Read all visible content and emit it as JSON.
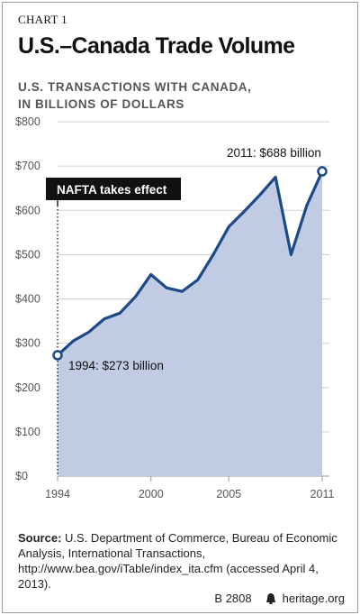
{
  "header": {
    "chart_label": "CHART 1",
    "title": "U.S.–Canada Trade Volume",
    "subtitle_line1": "U.S. TRANSACTIONS WITH CANADA,",
    "subtitle_line2": "IN BILLIONS OF DOLLARS"
  },
  "annotations": {
    "event_label": "NAFTA takes effect",
    "start_label": "1994: $273 billion",
    "end_label": "2011: $688 billion"
  },
  "colors": {
    "line": "#1c4a87",
    "area": "#c2cbe4",
    "event_box": "#111111",
    "grid": "#cfcfcf"
  },
  "footer": {
    "source_bold": "Source:",
    "source_text": "U.S. Department of Commerce, Bureau of Economic Analysis, International Transactions, http://www.bea.gov/iTable/index_ita.cfm (accessed April 4, 2013).",
    "code": "B 2808",
    "site": "heritage.org"
  },
  "chart_data": {
    "type": "area",
    "title": "U.S.–Canada Trade Volume",
    "ylabel": "U.S. TRANSACTIONS WITH CANADA, IN BILLIONS OF DOLLARS",
    "xlabel": "",
    "x": [
      1994,
      1995,
      1996,
      1997,
      1998,
      1999,
      2000,
      2001,
      2002,
      2003,
      2004,
      2005,
      2006,
      2007,
      2008,
      2009,
      2010,
      2011
    ],
    "series": [
      {
        "values": [
          273,
          305,
          325,
          355,
          368,
          405,
          455,
          425,
          417,
          443,
          500,
          563,
          598,
          635,
          675,
          500,
          610,
          688
        ]
      }
    ],
    "ylim": [
      0,
      800
    ],
    "yticks": [
      0,
      100,
      200,
      300,
      400,
      500,
      600,
      700,
      800
    ],
    "ytick_labels": [
      "$0",
      "$100",
      "$200",
      "$300",
      "$400",
      "$500",
      "$600",
      "$700",
      "$800"
    ],
    "xlim": [
      1994,
      2011
    ],
    "xticks": [
      1994,
      2000,
      2005,
      2011
    ],
    "xtick_labels": [
      "1994",
      "2000",
      "2005",
      "2011"
    ],
    "event_year": 1994,
    "grid": true
  }
}
